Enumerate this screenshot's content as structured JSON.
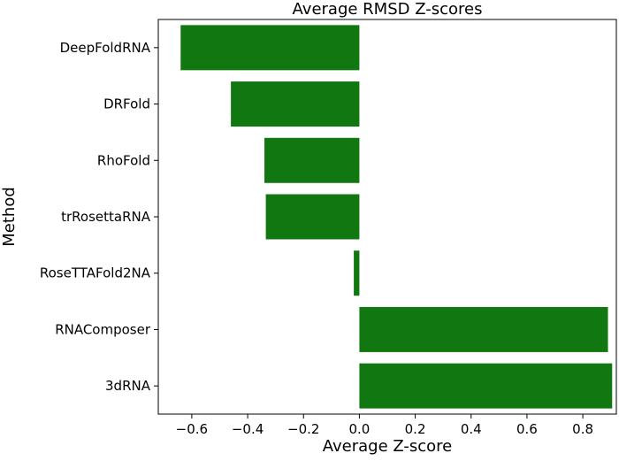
{
  "chart_data": {
    "type": "bar",
    "orientation": "horizontal",
    "title": "Average RMSD Z-scores",
    "xlabel": "Average Z-score",
    "ylabel": "Method",
    "categories": [
      "DeepFoldRNA",
      "DRFold",
      "RhoFold",
      "trRosettaRNA",
      "RoseTTAFold2NA",
      "RNAComposer",
      "3dRNA"
    ],
    "values": [
      -0.64,
      -0.46,
      -0.34,
      -0.335,
      -0.02,
      0.89,
      0.905
    ],
    "xlim": [
      -0.72,
      0.92
    ],
    "xticks": [
      -0.6,
      -0.4,
      -0.2,
      0.0,
      0.2,
      0.4,
      0.6,
      0.8
    ],
    "xtick_labels": [
      "−0.6",
      "−0.4",
      "−0.2",
      "0.0",
      "0.2",
      "0.4",
      "0.6",
      "0.8"
    ],
    "bar_color": "#117711",
    "grid": false,
    "legend": false
  }
}
